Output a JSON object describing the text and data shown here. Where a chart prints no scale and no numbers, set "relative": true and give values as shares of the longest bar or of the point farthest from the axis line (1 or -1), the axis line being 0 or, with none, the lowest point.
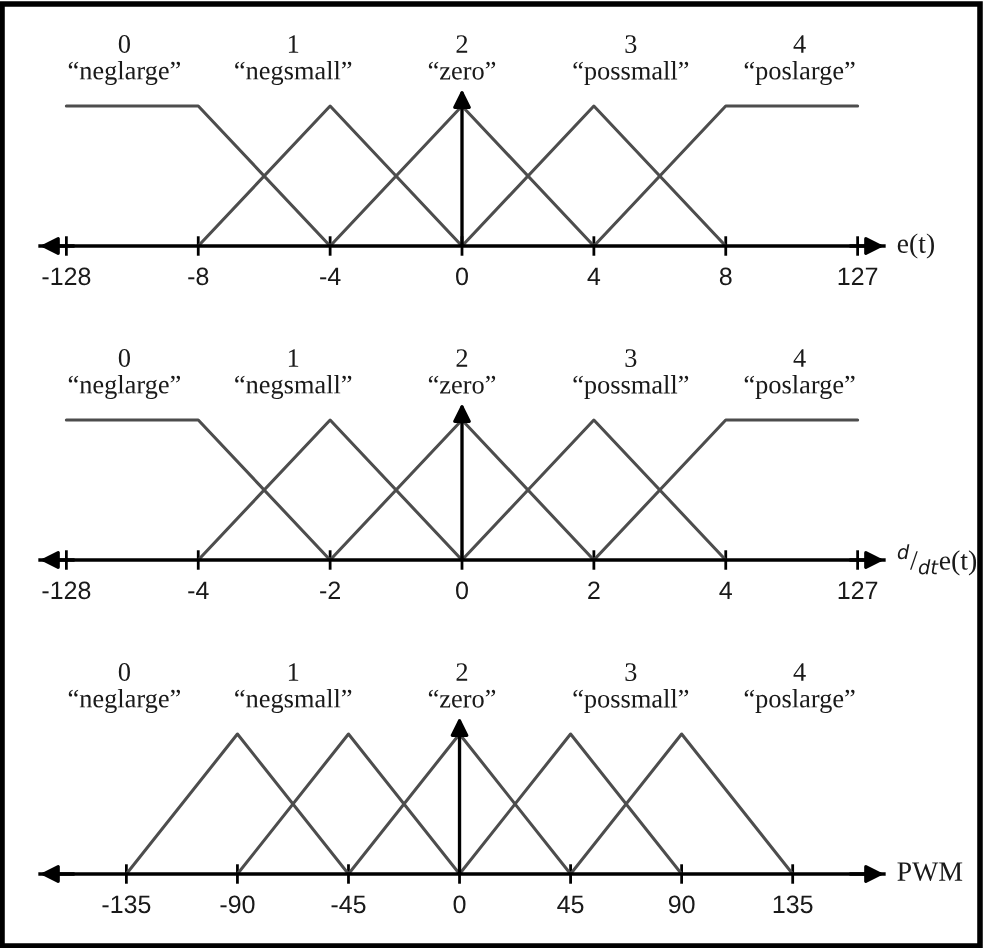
{
  "chart_data": [
    {
      "type": "line",
      "relative": true,
      "xlabel": "e(t)",
      "categories": [
        "-128",
        "-8",
        "-4",
        "0",
        "4",
        "8",
        "127"
      ],
      "series": [
        {
          "name": "0\n“neglarge”",
          "color": "#4d4d4d",
          "values": [
            1,
            1,
            0,
            null,
            null,
            null,
            null
          ]
        },
        {
          "name": "1\n“negsmall”",
          "color": "#4d4d4d",
          "values": [
            null,
            0,
            1,
            0,
            null,
            null,
            null
          ]
        },
        {
          "name": "2\n“zero”",
          "color": "#4d4d4d",
          "values": [
            null,
            null,
            0,
            1,
            0,
            null,
            null
          ]
        },
        {
          "name": "3\n“possmall”",
          "color": "#4d4d4d",
          "values": [
            null,
            null,
            null,
            0,
            1,
            0,
            null
          ]
        },
        {
          "name": "4\n“poslarge”",
          "color": "#4d4d4d",
          "values": [
            null,
            null,
            null,
            null,
            0,
            1,
            1
          ]
        }
      ],
      "ref_lines": [
        {
          "axis": "x",
          "value": "0",
          "color": "#000000"
        }
      ]
    },
    {
      "type": "line",
      "relative": true,
      "xlabel": "$^{d}$/$_{dt}$e(t)",
      "categories": [
        "-128",
        "-4",
        "-2",
        "0",
        "2",
        "4",
        "127"
      ],
      "series": [
        {
          "name": "0\n“neglarge”",
          "color": "#4d4d4d",
          "values": [
            1,
            1,
            0,
            null,
            null,
            null,
            null
          ]
        },
        {
          "name": "1\n“negsmall”",
          "color": "#4d4d4d",
          "values": [
            null,
            0,
            1,
            0,
            null,
            null,
            null
          ]
        },
        {
          "name": "2\n“zero”",
          "color": "#4d4d4d",
          "values": [
            null,
            null,
            0,
            1,
            0,
            null,
            null
          ]
        },
        {
          "name": "3\n“possmall”",
          "color": "#4d4d4d",
          "values": [
            null,
            null,
            null,
            0,
            1,
            0,
            null
          ]
        },
        {
          "name": "4\n“poslarge”",
          "color": "#4d4d4d",
          "values": [
            null,
            null,
            null,
            null,
            0,
            1,
            1
          ]
        }
      ],
      "ref_lines": [
        {
          "axis": "x",
          "value": "0",
          "color": "#000000"
        }
      ]
    },
    {
      "type": "line",
      "relative": true,
      "xlabel": "PWM",
      "x": [
        -135,
        -90,
        -45,
        0,
        45,
        90,
        135
      ],
      "xlim": [
        -170,
        172
      ],
      "xticks": [
        -135,
        -90,
        -45,
        0,
        45,
        90,
        135
      ],
      "series": [
        {
          "name": "0\n“neglarge”",
          "color": "#4d4d4d",
          "values": [
            0,
            1,
            0,
            null,
            null,
            null,
            null
          ]
        },
        {
          "name": "1\n“negsmall”",
          "color": "#4d4d4d",
          "values": [
            null,
            0,
            1,
            0,
            null,
            null,
            null
          ]
        },
        {
          "name": "2\n“zero”",
          "color": "#4d4d4d",
          "values": [
            null,
            null,
            0,
            1,
            0,
            null,
            null
          ]
        },
        {
          "name": "3\n“possmall”",
          "color": "#4d4d4d",
          "values": [
            null,
            null,
            null,
            0,
            1,
            0,
            null
          ]
        },
        {
          "name": "4\n“poslarge”",
          "color": "#4d4d4d",
          "values": [
            null,
            null,
            null,
            null,
            0,
            1,
            0
          ]
        }
      ],
      "ref_lines": [
        {
          "axis": "x",
          "value": 0,
          "color": "#000000"
        }
      ]
    }
  ]
}
